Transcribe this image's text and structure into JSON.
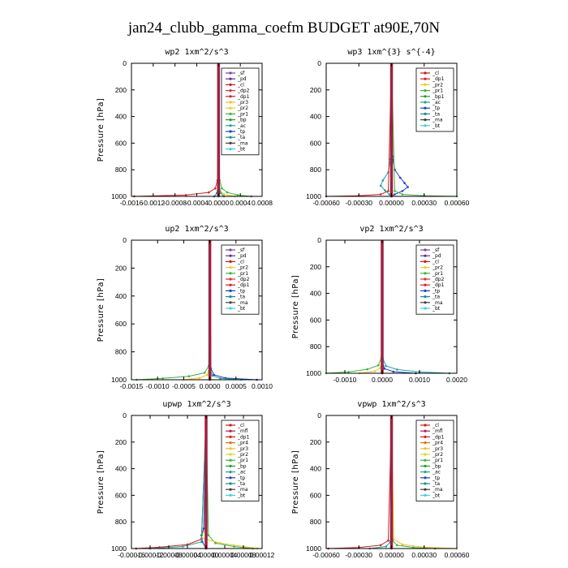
{
  "title": "jan24_clubb_gamma_coefm  BUDGET at90E,70N",
  "chart_data": [
    {
      "type": "line",
      "title": "wp2   1xm^2/s^3",
      "ylabel": "Pressure [hPa]",
      "ylim": [
        1000,
        0
      ],
      "yticks": [
        0,
        200,
        400,
        600,
        800,
        1000
      ],
      "xlim": [
        -0.0016,
        0.0008
      ],
      "xticks": [
        -0.0016,
        -0.0012,
        -0.0008,
        -0.0004,
        0.0,
        0.0004,
        0.0008
      ],
      "xtick_labels": [
        "-0.0016",
        "-0.0012",
        "-0.0008",
        "-0.0004",
        "0.0000",
        "0.0004",
        "0.0008"
      ],
      "legend": [
        "_sf",
        "_pd",
        "_cl",
        "_dp2",
        "_dp1",
        "_pr3",
        "_pr2",
        "_pr1",
        "_bp",
        "_ac",
        "_tp",
        "_ta",
        "_ma",
        "_bt"
      ],
      "legend_position": "top-right",
      "series": [
        {
          "name": "_dp1",
          "color": "#d42020",
          "x": [
            0,
            -2e-05,
            -6e-05,
            -0.00018,
            -0.0006,
            -0.00155
          ],
          "y": [
            0,
            880,
            940,
            970,
            990,
            1000
          ]
        },
        {
          "name": "_pr1",
          "color": "#3cb43c",
          "x": [
            0,
            2e-05,
            6e-05,
            0.00016,
            0.00035,
            0.0006
          ],
          "y": [
            0,
            880,
            940,
            970,
            990,
            1000
          ]
        },
        {
          "name": "_pr3",
          "color": "#f0c020",
          "x": [
            0,
            1e-05,
            3e-05,
            0.0001,
            0.0003
          ],
          "y": [
            0,
            900,
            960,
            985,
            1000
          ]
        },
        {
          "name": "_bp",
          "color": "#20a0a0",
          "x": [
            0,
            1e-05,
            4e-05,
            0.0001
          ],
          "y": [
            0,
            920,
            975,
            1000
          ]
        },
        {
          "name": "_ac",
          "color": "#1c8a8a",
          "x": [
            0,
            -1e-05,
            -3e-05,
            -8e-05
          ],
          "y": [
            0,
            920,
            975,
            1000
          ]
        },
        {
          "name": "_sf",
          "color": "#8040a0",
          "x": [
            0,
            0,
            0
          ],
          "y": [
            0,
            600,
            1000
          ]
        },
        {
          "name": "_bt",
          "color": "#40d0e0",
          "x": [
            0,
            5e-06,
            0
          ],
          "y": [
            0,
            950,
            1000
          ]
        }
      ]
    },
    {
      "type": "line",
      "title": "wp3   1xm^{3} s^{-4}",
      "ylabel": "",
      "ylim": [
        1000,
        0
      ],
      "yticks": [
        0,
        200,
        400,
        600,
        800,
        1000
      ],
      "xlim": [
        -0.0006,
        0.0006
      ],
      "xticks": [
        -0.0006,
        -0.0003,
        0.0,
        0.0003,
        0.0006
      ],
      "xtick_labels": [
        "-0.00060",
        "-0.00030",
        "0.00000",
        "0.00030",
        "0.00060"
      ],
      "legend": [
        "_cl",
        "_dp1",
        "_pr2",
        "_pr1",
        "_bp1",
        "_ac",
        "_tp",
        "_ta",
        "_ma",
        "_bt"
      ],
      "legend_position": "top-right",
      "series": [
        {
          "name": "_tp",
          "color": "#2040c0",
          "x": [
            0,
            1e-05,
            3e-05,
            8e-05,
            0.00012,
            0.00015,
            0.0001,
            3e-05,
            0
          ],
          "y": [
            0,
            700,
            800,
            860,
            900,
            930,
            960,
            985,
            1000
          ]
        },
        {
          "name": "_ac",
          "color": "#20a0a0",
          "x": [
            0,
            -1e-05,
            -3e-05,
            -8e-05,
            -0.0001,
            -6e-05,
            -2e-05,
            0
          ],
          "y": [
            0,
            720,
            820,
            880,
            920,
            955,
            985,
            1000
          ]
        },
        {
          "name": "_dp1",
          "color": "#d42020",
          "x": [
            0,
            -3e-05,
            -0.0001,
            -0.0003,
            -0.0006
          ],
          "y": [
            0,
            960,
            985,
            995,
            1000
          ]
        },
        {
          "name": "_pr1",
          "color": "#3cb43c",
          "x": [
            0,
            3e-05,
            0.0001,
            0.0003,
            0.0006
          ],
          "y": [
            0,
            960,
            985,
            995,
            1000
          ]
        },
        {
          "name": "_cl",
          "color": "#cc1818",
          "x": [
            0,
            0,
            0
          ],
          "y": [
            0,
            600,
            1000
          ]
        }
      ]
    },
    {
      "type": "line",
      "title": "up2   1xm^2/s^3",
      "ylabel": "Pressure [hPa]",
      "ylim": [
        1000,
        0
      ],
      "yticks": [
        0,
        200,
        400,
        600,
        800,
        1000
      ],
      "xlim": [
        -0.0015,
        0.001
      ],
      "xticks": [
        -0.0015,
        -0.001,
        -0.0005,
        0.0,
        0.0005,
        0.001
      ],
      "xtick_labels": [
        "-0.0015",
        "-0.0010",
        "-0.0005",
        "0.0000",
        "0.0005",
        "0.0010"
      ],
      "legend": [
        "_sf",
        "_pd",
        "_cl",
        "_pr2",
        "_pr1",
        "_dp2",
        "_dp1",
        "_tp",
        "_ta",
        "_ma",
        "_bt"
      ],
      "legend_position": "top-right",
      "series": [
        {
          "name": "_pr1",
          "color": "#3cb43c",
          "x": [
            0,
            -2e-05,
            -0.0001,
            -0.0004,
            -0.0009,
            -0.0014
          ],
          "y": [
            0,
            900,
            950,
            975,
            990,
            1000
          ]
        },
        {
          "name": "_pr2",
          "color": "#f0c020",
          "x": [
            0,
            -1e-05,
            -5e-05,
            -0.0002,
            -0.0005
          ],
          "y": [
            0,
            920,
            965,
            988,
            1000
          ]
        },
        {
          "name": "_tp",
          "color": "#2040c0",
          "x": [
            0,
            2e-05,
            8e-05,
            0.0003,
            0.0009
          ],
          "y": [
            0,
            920,
            965,
            988,
            1000
          ]
        },
        {
          "name": "_ta",
          "color": "#20a0a0",
          "x": [
            0,
            1e-05,
            5e-05,
            0.0002,
            0.0006
          ],
          "y": [
            0,
            930,
            970,
            990,
            1000
          ]
        },
        {
          "name": "_sf",
          "color": "#8040a0",
          "x": [
            0,
            0,
            0
          ],
          "y": [
            0,
            600,
            1000
          ]
        },
        {
          "name": "_cl",
          "color": "#cc1818",
          "x": [
            0,
            0,
            0
          ],
          "y": [
            0,
            600,
            1000
          ]
        }
      ]
    },
    {
      "type": "line",
      "title": "vp2   1xm^2/s^3",
      "ylabel": "Pressure [hPa]",
      "ylim": [
        1000,
        0
      ],
      "yticks": [
        0,
        200,
        400,
        600,
        800,
        1000
      ],
      "xlim": [
        -0.0015,
        0.002
      ],
      "xticks": [
        -0.001,
        0.0,
        0.001,
        0.002
      ],
      "xtick_labels": [
        "-0.0010",
        "0.0000",
        "0.0010",
        "0.0020"
      ],
      "legend": [
        "_sf",
        "_pd",
        "_cl",
        "_pr2",
        "_pr1",
        "_dp2",
        "_dp1",
        "_tp",
        "_ta",
        "_ma",
        "_bt"
      ],
      "legend_position": "top-right",
      "series": [
        {
          "name": "_pr1",
          "color": "#3cb43c",
          "x": [
            0,
            -2e-05,
            -0.0001,
            -0.0004,
            -0.0009,
            -0.0015
          ],
          "y": [
            0,
            880,
            940,
            970,
            990,
            1000
          ]
        },
        {
          "name": "_pr2",
          "color": "#f0c020",
          "x": [
            0,
            -1e-05,
            -5e-05,
            -0.0002,
            -0.0006
          ],
          "y": [
            0,
            910,
            960,
            985,
            1000
          ]
        },
        {
          "name": "_ta",
          "color": "#20a0a0",
          "x": [
            0,
            2e-05,
            0.0001,
            0.0004,
            0.001,
            0.0018
          ],
          "y": [
            0,
            890,
            945,
            972,
            990,
            1000
          ]
        },
        {
          "name": "_tp",
          "color": "#2040c0",
          "x": [
            0,
            1e-05,
            6e-05,
            0.0003,
            0.0009
          ],
          "y": [
            0,
            920,
            965,
            988,
            1000
          ]
        },
        {
          "name": "_sf",
          "color": "#8040a0",
          "x": [
            0,
            0,
            0
          ],
          "y": [
            0,
            600,
            1000
          ]
        },
        {
          "name": "_cl",
          "color": "#cc1818",
          "x": [
            0,
            0,
            0
          ],
          "y": [
            0,
            600,
            1000
          ]
        }
      ]
    },
    {
      "type": "line",
      "title": "upwp   1xm^2/s^3",
      "ylabel": "Pressure [hPa]",
      "ylim": [
        1000,
        0
      ],
      "yticks": [
        0,
        200,
        400,
        600,
        800,
        1000
      ],
      "xlim": [
        -0.00016,
        0.00012
      ],
      "xticks": [
        -0.00016,
        -0.00012,
        -8e-05,
        -4e-05,
        0.0,
        4e-05,
        8e-05,
        0.00012
      ],
      "xtick_labels": [
        "-0.00016",
        "-0.00012",
        "-0.00008",
        "-0.00004",
        "0.00000",
        "0.00004",
        "0.00008",
        "0.00012"
      ],
      "legend": [
        "_cl",
        "_mfl",
        "_dp1",
        "_pr4",
        "_pr3",
        "_pr2",
        "_pr1",
        "_bp",
        "_ac",
        "_tp",
        "_ta",
        "_ma",
        "_bt"
      ],
      "legend_position": "top-right",
      "series": [
        {
          "name": "_pr1",
          "color": "#3cb43c",
          "x": [
            0,
            5e-06,
            2e-05,
            6e-05,
            0.0001
          ],
          "y": [
            0,
            900,
            960,
            985,
            1000
          ]
        },
        {
          "name": "_pr3",
          "color": "#f0c020",
          "x": [
            0,
            -5e-06,
            -1e-05,
            3e-05,
            8e-05,
            0.00011
          ],
          "y": [
            0,
            870,
            920,
            960,
            985,
            1000
          ]
        },
        {
          "name": "_dp1",
          "color": "#d42020",
          "x": [
            0,
            -1e-05,
            -4e-05,
            -0.0001,
            -0.00015
          ],
          "y": [
            0,
            930,
            970,
            990,
            1000
          ]
        },
        {
          "name": "_tp",
          "color": "#2040c0",
          "x": [
            0,
            -5e-06,
            -1e-05,
            -8e-06,
            0
          ],
          "y": [
            0,
            850,
            900,
            950,
            1000
          ]
        },
        {
          "name": "_ac",
          "color": "#20a0a0",
          "x": [
            0,
            -1e-05,
            -5e-05,
            -0.00012
          ],
          "y": [
            0,
            950,
            985,
            1000
          ]
        },
        {
          "name": "_cl",
          "color": "#8040a0",
          "x": [
            0,
            0,
            0
          ],
          "y": [
            0,
            600,
            1000
          ]
        }
      ]
    },
    {
      "type": "line",
      "title": "vpwp   1xm^2/s^3",
      "ylabel": "Pressure [hPa]",
      "ylim": [
        1000,
        0
      ],
      "yticks": [
        0,
        200,
        400,
        600,
        800,
        1000
      ],
      "xlim": [
        -0.0006,
        0.0006
      ],
      "xticks": [
        -0.0006,
        -0.0003,
        0.0,
        0.0003,
        0.0006
      ],
      "xtick_labels": [
        "-0.00060",
        "-0.00030",
        "0.00000",
        "0.00030",
        "0.00060"
      ],
      "legend": [
        "_cl",
        "_mfl",
        "_dp1",
        "_pr4",
        "_pr3",
        "_pr2",
        "_pr1",
        "_bp",
        "_ac",
        "_tp",
        "_ta",
        "_ma",
        "_bt"
      ],
      "legend_position": "top-right",
      "series": [
        {
          "name": "_pr3",
          "color": "#f0c020",
          "x": [
            0,
            2e-05,
            0.0001,
            0.0003,
            0.0006
          ],
          "y": [
            0,
            930,
            970,
            990,
            1000
          ]
        },
        {
          "name": "_pr1",
          "color": "#3cb43c",
          "x": [
            0,
            1e-05,
            5e-05,
            0.0002,
            0.0004
          ],
          "y": [
            0,
            940,
            975,
            992,
            1000
          ]
        },
        {
          "name": "_dp1",
          "color": "#d42020",
          "x": [
            0,
            -3e-05,
            -0.0001,
            -0.0003,
            -0.00058
          ],
          "y": [
            0,
            940,
            975,
            992,
            1000
          ]
        },
        {
          "name": "_ac",
          "color": "#20a0a0",
          "x": [
            0,
            -1e-05,
            -5e-05,
            -0.0002
          ],
          "y": [
            0,
            950,
            985,
            1000
          ]
        },
        {
          "name": "_cl",
          "color": "#8040a0",
          "x": [
            0,
            0,
            0
          ],
          "y": [
            0,
            600,
            1000
          ]
        }
      ]
    }
  ]
}
